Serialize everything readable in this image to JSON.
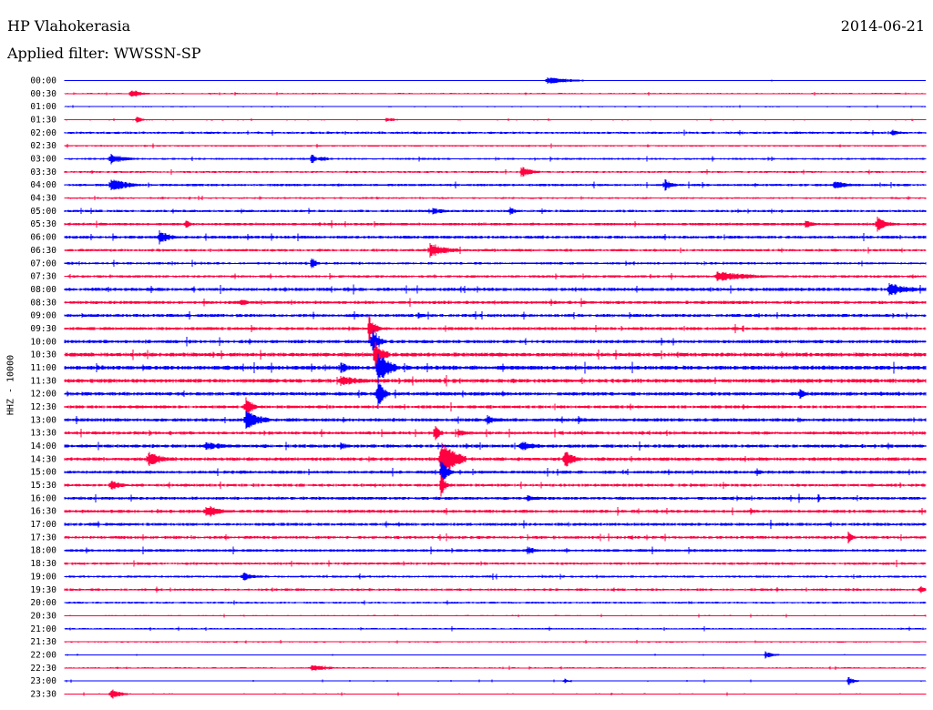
{
  "header": {
    "station": "HP Vlahokerasia",
    "date": "2014-06-21",
    "filter": "Applied filter: WWSSN-SP",
    "channel": "HHZ - 10000"
  },
  "colors": {
    "even_trace": "#0000ff",
    "odd_trace": "#ff0040",
    "text": "#000000",
    "background": "#ffffff"
  },
  "chart_data": {
    "type": "line",
    "kind": "helicorder",
    "row_labels": [
      "00:00",
      "00:30",
      "01:00",
      "01:30",
      "02:00",
      "02:30",
      "03:00",
      "03:30",
      "04:00",
      "04:30",
      "05:00",
      "05:30",
      "06:00",
      "06:30",
      "07:00",
      "07:30",
      "08:00",
      "08:30",
      "09:00",
      "09:30",
      "10:00",
      "10:30",
      "11:00",
      "11:30",
      "12:00",
      "12:30",
      "13:00",
      "13:30",
      "14:00",
      "14:30",
      "15:00",
      "15:30",
      "16:00",
      "16:30",
      "17:00",
      "17:30",
      "18:00",
      "18:30",
      "19:00",
      "19:30",
      "20:00",
      "20:30",
      "21:00",
      "21:30",
      "22:00",
      "22:30",
      "23:00",
      "23:30"
    ],
    "noise_levels": [
      0.3,
      0.5,
      0.4,
      0.5,
      0.8,
      0.6,
      0.7,
      0.7,
      0.9,
      0.6,
      0.9,
      1.0,
      1.1,
      0.9,
      0.8,
      0.9,
      1.2,
      1.1,
      1.1,
      1.1,
      1.2,
      1.4,
      1.5,
      1.4,
      1.3,
      1.1,
      1.2,
      1.1,
      1.2,
      1.2,
      1.1,
      1.0,
      1.1,
      1.1,
      1.1,
      1.0,
      1.0,
      0.9,
      0.8,
      0.8,
      0.7,
      0.5,
      0.6,
      0.5,
      0.3,
      0.5,
      0.4,
      0.5
    ],
    "events": [
      {
        "row": 0,
        "minute": 16.8,
        "amp": 4,
        "dur": 1.5
      },
      {
        "row": 1,
        "minute": 2.3,
        "amp": 5,
        "dur": 0.6
      },
      {
        "row": 3,
        "minute": 2.5,
        "amp": 4,
        "dur": 0.3
      },
      {
        "row": 3,
        "minute": 11.2,
        "amp": 3,
        "dur": 0.5
      },
      {
        "row": 4,
        "minute": 28.8,
        "amp": 4,
        "dur": 0.5
      },
      {
        "row": 6,
        "minute": 1.6,
        "amp": 6,
        "dur": 0.8
      },
      {
        "row": 6,
        "minute": 8.6,
        "amp": 9,
        "dur": 0.1
      },
      {
        "row": 6,
        "minute": 8.9,
        "amp": 4,
        "dur": 0.4
      },
      {
        "row": 7,
        "minute": 15.9,
        "amp": 7,
        "dur": 0.6
      },
      {
        "row": 8,
        "minute": 1.6,
        "amp": 8,
        "dur": 1.0
      },
      {
        "row": 8,
        "minute": 20.9,
        "amp": 7,
        "dur": 0.4
      },
      {
        "row": 8,
        "minute": 26.8,
        "amp": 5,
        "dur": 0.8
      },
      {
        "row": 10,
        "minute": 12.8,
        "amp": 4,
        "dur": 0.8
      },
      {
        "row": 10,
        "minute": 15.5,
        "amp": 6,
        "dur": 0.2
      },
      {
        "row": 11,
        "minute": 4.2,
        "amp": 6,
        "dur": 0.2
      },
      {
        "row": 11,
        "minute": 28.3,
        "amp": 9,
        "dur": 0.5
      },
      {
        "row": 11,
        "minute": 25.8,
        "amp": 6,
        "dur": 0.4
      },
      {
        "row": 12,
        "minute": 3.3,
        "amp": 8,
        "dur": 0.6
      },
      {
        "row": 13,
        "minute": 12.7,
        "amp": 9,
        "dur": 1.0
      },
      {
        "row": 14,
        "minute": 8.6,
        "amp": 8,
        "dur": 0.2
      },
      {
        "row": 15,
        "minute": 22.7,
        "amp": 6,
        "dur": 2.0
      },
      {
        "row": 16,
        "minute": 28.7,
        "amp": 8,
        "dur": 1.2
      },
      {
        "row": 17,
        "minute": 6.1,
        "amp": 5,
        "dur": 0.5
      },
      {
        "row": 18,
        "minute": 12.3,
        "amp": 5,
        "dur": 0.3
      },
      {
        "row": 19,
        "minute": 10.6,
        "amp": 15,
        "dur": 0.3
      },
      {
        "row": 20,
        "minute": 10.7,
        "amp": 20,
        "dur": 0.3
      },
      {
        "row": 21,
        "minute": 10.8,
        "amp": 18,
        "dur": 0.4
      },
      {
        "row": 22,
        "minute": 10.9,
        "amp": 22,
        "dur": 0.6
      },
      {
        "row": 22,
        "minute": 9.6,
        "amp": 7,
        "dur": 0.5
      },
      {
        "row": 23,
        "minute": 9.6,
        "amp": 6,
        "dur": 1.4
      },
      {
        "row": 24,
        "minute": 10.9,
        "amp": 18,
        "dur": 0.3
      },
      {
        "row": 24,
        "minute": 25.6,
        "amp": 6,
        "dur": 0.4
      },
      {
        "row": 25,
        "minute": 6.3,
        "amp": 14,
        "dur": 0.3
      },
      {
        "row": 26,
        "minute": 6.3,
        "amp": 12,
        "dur": 0.8
      },
      {
        "row": 26,
        "minute": 14.7,
        "amp": 6,
        "dur": 0.5
      },
      {
        "row": 26,
        "minute": 17.9,
        "amp": 6,
        "dur": 0.1
      },
      {
        "row": 27,
        "minute": 13.7,
        "amp": 5,
        "dur": 0.5
      },
      {
        "row": 27,
        "minute": 12.9,
        "amp": 12,
        "dur": 0.2
      },
      {
        "row": 28,
        "minute": 4.9,
        "amp": 5,
        "dur": 1.3
      },
      {
        "row": 28,
        "minute": 9.6,
        "amp": 5,
        "dur": 0.4
      },
      {
        "row": 28,
        "minute": 15.9,
        "amp": 7,
        "dur": 0.6
      },
      {
        "row": 29,
        "minute": 2.9,
        "amp": 10,
        "dur": 0.7
      },
      {
        "row": 29,
        "minute": 13.1,
        "amp": 22,
        "dur": 0.8
      },
      {
        "row": 29,
        "minute": 17.4,
        "amp": 12,
        "dur": 0.5
      },
      {
        "row": 30,
        "minute": 13.1,
        "amp": 16,
        "dur": 0.3
      },
      {
        "row": 30,
        "minute": 24.1,
        "amp": 5,
        "dur": 0.3
      },
      {
        "row": 31,
        "minute": 1.6,
        "amp": 7,
        "dur": 0.5
      },
      {
        "row": 31,
        "minute": 13.1,
        "amp": 14,
        "dur": 0.2
      },
      {
        "row": 32,
        "minute": 16.1,
        "amp": 5,
        "dur": 0.4
      },
      {
        "row": 33,
        "minute": 4.9,
        "amp": 8,
        "dur": 0.9
      },
      {
        "row": 33,
        "minute": 23.9,
        "amp": 4,
        "dur": 0.3
      },
      {
        "row": 35,
        "minute": 27.3,
        "amp": 7,
        "dur": 0.2
      },
      {
        "row": 36,
        "minute": 16.1,
        "amp": 5,
        "dur": 0.5
      },
      {
        "row": 38,
        "minute": 6.2,
        "amp": 5,
        "dur": 0.7
      },
      {
        "row": 39,
        "minute": 29.8,
        "amp": 5,
        "dur": 0.2
      },
      {
        "row": 44,
        "minute": 24.4,
        "amp": 4,
        "dur": 0.5
      },
      {
        "row": 45,
        "minute": 8.6,
        "amp": 4,
        "dur": 1.0
      },
      {
        "row": 46,
        "minute": 17.4,
        "amp": 3,
        "dur": 0.2
      },
      {
        "row": 46,
        "minute": 27.3,
        "amp": 5,
        "dur": 0.3
      },
      {
        "row": 47,
        "minute": 1.6,
        "amp": 7,
        "dur": 0.5
      }
    ]
  }
}
